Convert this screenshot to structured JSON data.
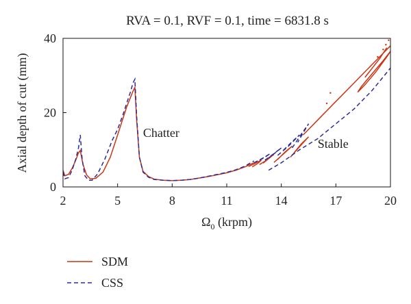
{
  "chart_data": {
    "type": "line",
    "title": "RVA = 0.1, RVF = 0.1, time = 6831.8 s",
    "xlabel_main": "Ω",
    "xlabel_sub": "0",
    "xlabel_rest": " (krpm)",
    "ylabel": "Axial depth of cut (mm)",
    "xlim": [
      2,
      20
    ],
    "ylim": [
      0,
      40
    ],
    "xticks": [
      "2",
      "5",
      "8",
      "11",
      "14",
      "17",
      "20"
    ],
    "yticks": [
      "0",
      "20",
      "40"
    ],
    "grid": false,
    "legend_position": "bottom-left",
    "annotations": [
      {
        "text": "Chatter",
        "x": 6.4,
        "y": 13.5
      },
      {
        "text": "Stable",
        "x": 16.0,
        "y": 10.5
      }
    ],
    "series": [
      {
        "name": "SDM",
        "color": "#cc3311",
        "style": "solid",
        "segments": [
          {
            "x": [
              2.0,
              2.1,
              2.3,
              2.5,
              2.7,
              2.85,
              2.95,
              3.1,
              3.3,
              3.5,
              3.8,
              4.2,
              4.6,
              5.0,
              5.3,
              5.5,
              5.7,
              5.85,
              5.95,
              6.05,
              6.2,
              6.4,
              6.7,
              7.0,
              7.5,
              8.0,
              8.5,
              9.0,
              9.5,
              10.0,
              10.5,
              11.0,
              11.5,
              12.0,
              12.5
            ],
            "y": [
              4.5,
              3.0,
              3.4,
              5.0,
              7.2,
              9.2,
              9.8,
              6.0,
              3.2,
              2.2,
              2.3,
              4.0,
              8.0,
              14.0,
              18.5,
              21.5,
              24.0,
              25.8,
              26.8,
              18.0,
              8.0,
              4.2,
              2.8,
              2.1,
              1.8,
              1.7,
              1.8,
              2.0,
              2.4,
              2.8,
              3.3,
              3.8,
              4.5,
              5.4,
              6.5
            ]
          },
          {
            "x": [
              12.2,
              12.5,
              12.9,
              12.7,
              12.4
            ],
            "y": [
              5.5,
              6.2,
              7.2,
              6.3,
              5.4
            ]
          },
          {
            "x": [
              12.8,
              13.2,
              13.6,
              13.3,
              13.0
            ],
            "y": [
              6.0,
              7.2,
              8.8,
              7.6,
              6.4
            ]
          },
          {
            "x": [
              13.6,
              14.1,
              14.6,
              14.2,
              13.8
            ],
            "y": [
              6.6,
              8.8,
              11.0,
              9.4,
              7.4
            ]
          },
          {
            "x": [
              14.5,
              15.0,
              15.5,
              15.1,
              14.7
            ],
            "y": [
              8.0,
              10.8,
              13.5,
              11.6,
              9.2
            ]
          },
          {
            "x": [
              15.2,
              16.0,
              17.0,
              18.0,
              19.0,
              20.0
            ],
            "y": [
              14.0,
              18.0,
              23.0,
              28.0,
              33.0,
              38.0
            ]
          },
          {
            "x": [
              18.2,
              18.6,
              19.2,
              19.8,
              20.0,
              19.6,
              19.0,
              18.4,
              18.2
            ],
            "y": [
              25.5,
              27.5,
              31.0,
              35.0,
              36.5,
              34.0,
              30.5,
              27.0,
              25.5
            ]
          },
          {
            "x": [
              18.6,
              19.0,
              19.4,
              19.8
            ],
            "y": [
              29.5,
              32.0,
              34.5,
              37.5
            ]
          }
        ],
        "dots": [
          {
            "x": [
              16.7,
              16.5,
              19.3,
              19.6,
              19.75,
              19.9
            ],
            "y": [
              25.3,
              22.5,
              35.0,
              37.0,
              38.3,
              39.5
            ]
          }
        ]
      },
      {
        "name": "CSS",
        "color": "#2a2a9a",
        "style": "dashed",
        "segments": [
          {
            "x": [
              2.0,
              2.1,
              2.3,
              2.5,
              2.7,
              2.85,
              2.95,
              3.05,
              3.2,
              3.4,
              3.6,
              3.9,
              4.3,
              4.7,
              5.0,
              5.3,
              5.5,
              5.7,
              5.85,
              5.95,
              6.05,
              6.2,
              6.4,
              6.7,
              7.0,
              7.5,
              8.0,
              8.5,
              9.0,
              9.5,
              10.0,
              10.5,
              11.0,
              11.5,
              12.0,
              12.5
            ],
            "y": [
              4.0,
              2.2,
              2.5,
              4.5,
              7.5,
              10.5,
              14.0,
              7.5,
              3.0,
              1.8,
              1.8,
              3.5,
              7.5,
              12.5,
              15.5,
              19.5,
              22.5,
              25.5,
              28.0,
              29.0,
              19.0,
              8.0,
              4.0,
              2.6,
              2.0,
              1.8,
              1.7,
              1.8,
              2.0,
              2.4,
              2.9,
              3.4,
              3.9,
              4.6,
              5.6,
              7.0
            ]
          },
          {
            "x": [
              12.5,
              13.0,
              13.4,
              13.1,
              12.7
            ],
            "y": [
              6.5,
              7.8,
              9.0,
              8.0,
              6.9
            ]
          },
          {
            "x": [
              13.1,
              13.6,
              14.0,
              13.7,
              13.3
            ],
            "y": [
              7.2,
              9.0,
              10.5,
              9.3,
              7.8
            ]
          },
          {
            "x": [
              13.8,
              14.4,
              15.0,
              14.6,
              14.1
            ],
            "y": [
              8.5,
              11.0,
              14.0,
              12.2,
              9.8
            ]
          },
          {
            "x": [
              14.6,
              15.0,
              15.5,
              15.2,
              14.9
            ],
            "y": [
              10.5,
              13.5,
              17.0,
              14.5,
              12.0
            ]
          },
          {
            "x": [
              13.3,
              14.0,
              15.0,
              16.0,
              17.0,
              18.0,
              19.0,
              20.0
            ],
            "y": [
              4.5,
              6.5,
              10.0,
              13.0,
              17.0,
              21.0,
              26.0,
              32.0
            ]
          }
        ],
        "dots": []
      }
    ]
  }
}
